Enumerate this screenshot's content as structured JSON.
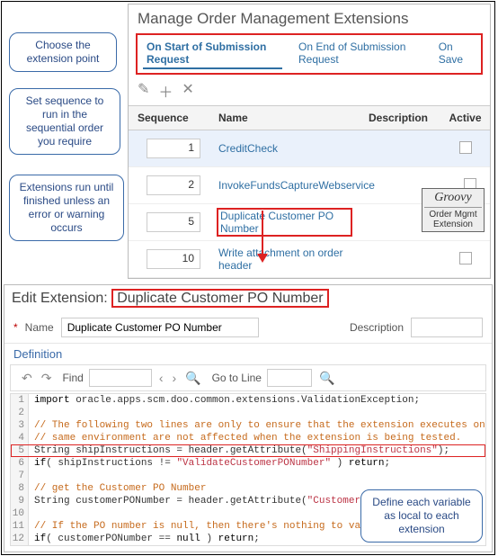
{
  "top": {
    "title": "Manage Order Management Extensions",
    "tabs": [
      "On Start of Submission Request",
      "On End of Submission Request",
      "On Save"
    ],
    "active_tab": 0,
    "columns": {
      "seq": "Sequence",
      "name": "Name",
      "desc": "Description",
      "act": "Active"
    },
    "rows": [
      {
        "seq": "1",
        "name": "CreditCheck",
        "active": false,
        "selected": true,
        "highlight": false
      },
      {
        "seq": "2",
        "name": "InvokeFundsCaptureWebservice",
        "active": false,
        "selected": false,
        "highlight": false
      },
      {
        "seq": "5",
        "name": "Duplicate Customer PO Number",
        "active": false,
        "selected": false,
        "highlight": true
      },
      {
        "seq": "10",
        "name": "Write attachment on order header",
        "active": false,
        "selected": false,
        "highlight": false
      }
    ],
    "badge": {
      "brand": "Groovy",
      "label": "Order Mgmt Extension"
    }
  },
  "callouts": {
    "c1": "Choose the extension point",
    "c2": "Set sequence to run in the sequential order you require",
    "c3": "Extensions run until finished unless an error or warning occurs",
    "c4": "Define each variable as local to each extension"
  },
  "editor": {
    "title_prefix": "Edit Extension:",
    "title_name": "Duplicate Customer PO Number",
    "name_label": "Name",
    "name_value": "Duplicate Customer PO Number",
    "desc_label": "Description",
    "section": "Definition",
    "find_label": "Find",
    "goto_label": "Go to Line",
    "code": [
      {
        "n": 1,
        "html": "<span class='c-kw'>import</span> oracle.apps.scm.doo.common.extensions.ValidationException;"
      },
      {
        "n": 2,
        "html": ""
      },
      {
        "n": 3,
        "html": "<span class='c-com'>// The following two lines are only to ensure that the extension executes only</span>"
      },
      {
        "n": 4,
        "html": "<span class='c-com'>// same environment are not affected when the extension is being tested.</span>"
      },
      {
        "n": 5,
        "html": "String shipInstructions = header.getAttribute(<span class='c-str'>\"ShippingInstructions\"</span>);",
        "hl": true
      },
      {
        "n": 6,
        "html": "<span class='c-kw'>if</span>( shipInstructions != <span class='c-str'>\"ValidateCustomerPONumber\"</span> ) <span class='c-kw'>return</span>;"
      },
      {
        "n": 7,
        "html": ""
      },
      {
        "n": 8,
        "html": "<span class='c-com'>// get the Customer PO Number</span>"
      },
      {
        "n": 9,
        "html": "String customerPONumber = header.getAttribute(<span class='c-str'>\"CustomerPONumber\"</span>);"
      },
      {
        "n": 10,
        "html": ""
      },
      {
        "n": 11,
        "html": "<span class='c-com'>// If the PO number is null, then there's nothing to validate</span>"
      },
      {
        "n": 12,
        "html": "<span class='c-kw'>if</span>( customerPONumber == <span class='c-kw'>null</span> ) <span class='c-kw'>return</span>;"
      }
    ]
  },
  "colors": {
    "accent_red": "#d22",
    "link_blue": "#2f6fa3",
    "callout_border": "#3a6aa8"
  }
}
